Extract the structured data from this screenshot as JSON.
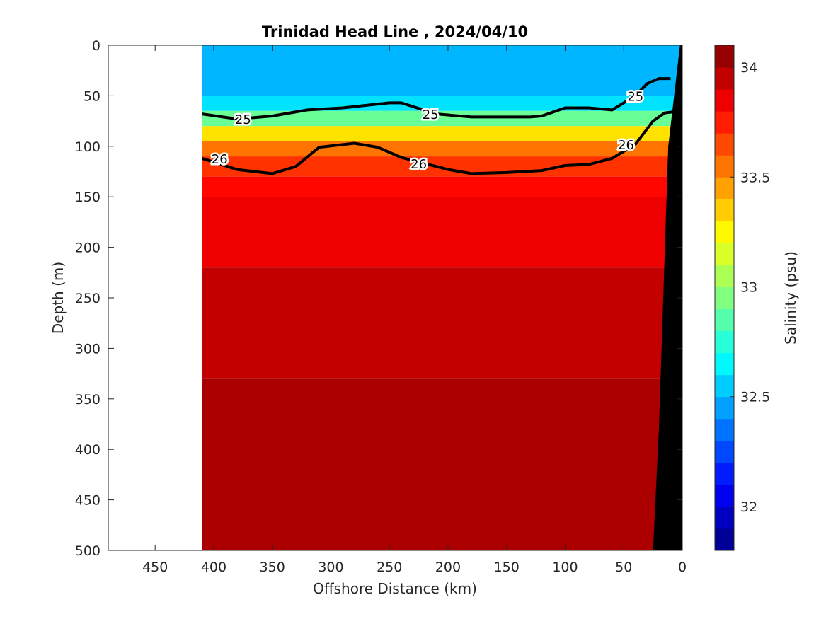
{
  "chart_data": {
    "type": "heatmap",
    "title": "Trinidad Head Line , 2024/04/10",
    "xlabel": "Offshore Distance (km)",
    "ylabel": "Depth (m)",
    "xlim": [
      490,
      0
    ],
    "ylim": [
      0,
      500
    ],
    "x_reversed": true,
    "y_reversed": true,
    "xticks": [
      450,
      400,
      350,
      300,
      250,
      200,
      150,
      100,
      50,
      0
    ],
    "yticks": [
      0,
      50,
      100,
      150,
      200,
      250,
      300,
      350,
      400,
      450,
      500
    ],
    "data_extent_km": [
      410,
      0
    ],
    "colorbar": {
      "label": "Salinity (psu)",
      "range": [
        31.8,
        34.1
      ],
      "ticks": [
        32,
        32.5,
        33,
        33.5,
        34
      ],
      "colormap": "jet"
    },
    "salinity_layers": [
      {
        "depth": 0,
        "salinity": 32.5
      },
      {
        "depth": 50,
        "salinity": 32.6
      },
      {
        "depth": 65,
        "salinity": 32.9
      },
      {
        "depth": 80,
        "salinity": 33.3
      },
      {
        "depth": 95,
        "salinity": 33.55
      },
      {
        "depth": 110,
        "salinity": 33.7
      },
      {
        "depth": 130,
        "salinity": 33.8
      },
      {
        "depth": 150,
        "salinity": 33.85
      },
      {
        "depth": 220,
        "salinity": 33.95
      },
      {
        "depth": 330,
        "salinity": 34.0
      },
      {
        "depth": 500,
        "salinity": 34.05
      }
    ],
    "density_contours": [
      {
        "level": "25",
        "label_distance_km": [
          375,
          215,
          40
        ],
        "points": [
          [
            410,
            68
          ],
          [
            380,
            73
          ],
          [
            350,
            70
          ],
          [
            320,
            64
          ],
          [
            290,
            62
          ],
          [
            250,
            57
          ],
          [
            240,
            57
          ],
          [
            210,
            68
          ],
          [
            180,
            71
          ],
          [
            150,
            71
          ],
          [
            130,
            71
          ],
          [
            120,
            70
          ],
          [
            100,
            62
          ],
          [
            80,
            62
          ],
          [
            60,
            64
          ],
          [
            40,
            50
          ],
          [
            30,
            38
          ],
          [
            20,
            33
          ],
          [
            10,
            33
          ]
        ]
      },
      {
        "level": "26",
        "label_distance_km": [
          395,
          225,
          48
        ],
        "points": [
          [
            410,
            112
          ],
          [
            380,
            123
          ],
          [
            350,
            127
          ],
          [
            330,
            120
          ],
          [
            310,
            101
          ],
          [
            280,
            97
          ],
          [
            260,
            101
          ],
          [
            240,
            111
          ],
          [
            220,
            117
          ],
          [
            200,
            123
          ],
          [
            180,
            127
          ],
          [
            150,
            126
          ],
          [
            120,
            124
          ],
          [
            100,
            119
          ],
          [
            80,
            118
          ],
          [
            60,
            112
          ],
          [
            40,
            98
          ],
          [
            25,
            75
          ],
          [
            15,
            67
          ],
          [
            8,
            66
          ]
        ]
      }
    ]
  }
}
